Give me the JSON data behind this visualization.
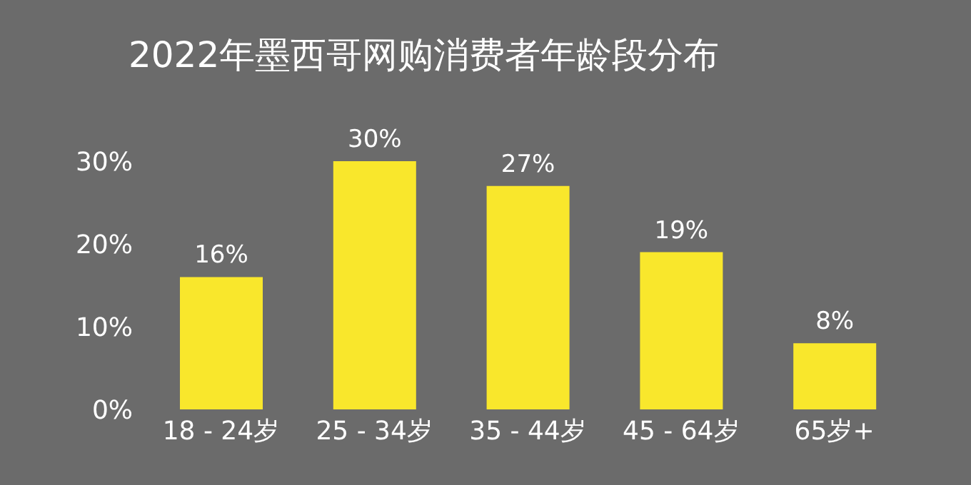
{
  "chart_data": {
    "type": "bar",
    "title": "2022年墨西哥网购消费者年龄段分布",
    "categories": [
      "18 - 24岁",
      "25 - 34岁",
      "35 - 44岁",
      "45 - 64岁",
      "65岁+"
    ],
    "values": [
      16,
      30,
      27,
      19,
      8
    ],
    "value_labels": [
      "16%",
      "30%",
      "27%",
      "19%",
      "8%"
    ],
    "color": "#f9e72c",
    "ylim": [
      0,
      30
    ],
    "yticks": [
      {
        "value": 0,
        "label": "0%"
      },
      {
        "value": 10,
        "label": "10%"
      },
      {
        "value": 20,
        "label": "20%"
      },
      {
        "value": 30,
        "label": "30%"
      }
    ],
    "grid": false,
    "legend": false
  }
}
